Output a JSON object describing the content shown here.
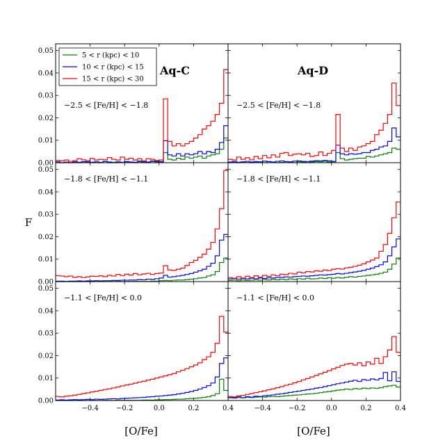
{
  "chart_data": {
    "type": "step-histogram",
    "ylabel": "F",
    "xlabel": "[O/Fe]",
    "xlim": [
      -0.6,
      0.4
    ],
    "ylim": [
      0.0,
      0.053
    ],
    "x_ticks": [
      -0.4,
      -0.2,
      0.0,
      0.2,
      0.4
    ],
    "x_tick_labels": [
      "−0.4",
      "−0.2",
      "0.0",
      "0.2",
      "0.4"
    ],
    "y_ticks": [
      0.0,
      0.01,
      0.02,
      0.03,
      0.04,
      0.05
    ],
    "y_tick_labels": [
      "0.00",
      "0.01",
      "0.02",
      "0.03",
      "0.04",
      "0.05"
    ],
    "bin_start": -0.6,
    "bin_width": 0.025,
    "legend": [
      {
        "label": "5 < r (kpc) < 10",
        "color": "#008000"
      },
      {
        "label": "10 < r (kpc) < 15",
        "color": "#0000ff"
      },
      {
        "label": "15 < r (kpc) < 30",
        "color": "#ff0000"
      }
    ],
    "models": [
      "Aq-C",
      "Aq-D"
    ],
    "panels": [
      {
        "model": "Aq-C",
        "row": 0,
        "col": 0,
        "label": "−2.5 < [Fe/H] < −1.8",
        "series": [
          {
            "name": "5 < r (kpc) < 10",
            "color": "#008000",
            "values": [
              0,
              0,
              0.0002,
              0,
              0.0003,
              0,
              0.0001,
              0.0004,
              0,
              0,
              0.0002,
              0.0005,
              0,
              0.0002,
              0,
              0.0001,
              0.0003,
              0.0002,
              0,
              0.0004,
              0.0002,
              0,
              0.0005,
              0.0003,
              0.0003,
              0.0045,
              0.0015,
              0.0012,
              0.002,
              0.0015,
              0.0025,
              0.002,
              0.0025,
              0.003,
              0.002,
              0.003,
              0.0035,
              0.004,
              0.006,
              0.011
            ]
          },
          {
            "name": "10 < r (kpc) < 15",
            "color": "#0000ff",
            "values": [
              0.0004,
              0,
              0.0002,
              0,
              0.0004,
              0.0002,
              0.0005,
              0.0003,
              0.0002,
              0.0004,
              0,
              0.0006,
              0.0003,
              0,
              0.0004,
              0.0002,
              0.0005,
              0.0003,
              0.0002,
              0.0007,
              0.0004,
              0.0003,
              0.0008,
              0.0006,
              0.0005,
              0.0098,
              0.0035,
              0.003,
              0.004,
              0.003,
              0.004,
              0.0035,
              0.004,
              0.005,
              0.004,
              0.005,
              0.0045,
              0.006,
              0.009,
              0.0165
            ]
          },
          {
            "name": "15 < r (kpc) < 30",
            "color": "#ff0000",
            "values": [
              0.001,
              0.0008,
              0.0012,
              0.0006,
              0.0009,
              0.0018,
              0.0013,
              0.0009,
              0.0019,
              0.0012,
              0.0015,
              0.0013,
              0.0023,
              0.0015,
              0.0012,
              0.0025,
              0.0015,
              0.002,
              0.0012,
              0.0018,
              0.0008,
              0.0018,
              0.0015,
              0.001,
              0.0012,
              0.0285,
              0.0095,
              0.0075,
              0.0085,
              0.0075,
              0.0085,
              0.0095,
              0.011,
              0.0125,
              0.015,
              0.0165,
              0.0185,
              0.0215,
              0.0265,
              0.0415
            ]
          }
        ]
      },
      {
        "model": "Aq-D",
        "row": 0,
        "col": 1,
        "label": "−2.5 < [Fe/H] < −1.8",
        "series": [
          {
            "name": "5 < r (kpc) < 10",
            "color": "#008000",
            "values": [
              0,
              0.0002,
              0,
              0.0003,
              0.0001,
              0,
              0.0003,
              0.0002,
              0,
              0.0004,
              0.0002,
              0,
              0.0002,
              0.0004,
              0.0002,
              0,
              0.0004,
              0.0003,
              0,
              0.0003,
              0.0005,
              0.0004,
              0.0006,
              0.0003,
              0.0004,
              0.0045,
              0.0018,
              0.0012,
              0.0015,
              0.0018,
              0.002,
              0.002,
              0.0028,
              0.0025,
              0.003,
              0.0035,
              0.004,
              0.0045,
              0.0065,
              0.006
            ]
          },
          {
            "name": "10 < r (kpc) < 15",
            "color": "#0000ff",
            "values": [
              0.0003,
              0.0005,
              0.0002,
              0.0004,
              0.0006,
              0.0003,
              0.0005,
              0.0004,
              0.0007,
              0.0005,
              0.0003,
              0.0006,
              0.0008,
              0.0005,
              0.0004,
              0.0007,
              0.0008,
              0.0006,
              0.0005,
              0.0007,
              0.0009,
              0.0008,
              0.001,
              0.0008,
              0.0006,
              0.0078,
              0.004,
              0.0035,
              0.004,
              0.0038,
              0.004,
              0.0045,
              0.0045,
              0.0055,
              0.006,
              0.007,
              0.0075,
              0.0095,
              0.0155,
              0.0115
            ]
          },
          {
            "name": "15 < r (kpc) < 30",
            "color": "#ff0000",
            "values": [
              0.0015,
              0.0012,
              0.0025,
              0.0015,
              0.0022,
              0.0013,
              0.0028,
              0.0018,
              0.0032,
              0.0022,
              0.0035,
              0.0025,
              0.0042,
              0.0045,
              0.0032,
              0.0038,
              0.004,
              0.0035,
              0.0042,
              0.0028,
              0.0032,
              0.0048,
              0.0032,
              0.0042,
              0.0055,
              0.0215,
              0.0065,
              0.005,
              0.0065,
              0.0055,
              0.007,
              0.0075,
              0.0085,
              0.0095,
              0.0125,
              0.0145,
              0.0175,
              0.0215,
              0.0355,
              0.0255
            ]
          }
        ]
      },
      {
        "model": "Aq-C",
        "row": 1,
        "col": 0,
        "label": "−1.8 < [Fe/H] < −1.1",
        "series": [
          {
            "name": "5 < r (kpc) < 10",
            "color": "#008000",
            "values": [
              0,
              0,
              0,
              0,
              0,
              0,
              0,
              0,
              0,
              0,
              0.0001,
              0,
              0,
              0,
              0.0001,
              0,
              0,
              0.0001,
              0.0001,
              0.0001,
              0.0001,
              0.0001,
              0.0002,
              0.0002,
              0.0004,
              0.0005,
              0.0004,
              0.0006,
              0.0007,
              0.0007,
              0.0009,
              0.0011,
              0.0013,
              0.0016,
              0.0018,
              0.0025,
              0.003,
              0.0045,
              0.0085,
              0.0105
            ]
          },
          {
            "name": "10 < r (kpc) < 15",
            "color": "#0000ff",
            "values": [
              0.0002,
              0.0002,
              0.0001,
              0.0002,
              0.0002,
              0.0003,
              0.0002,
              0.0003,
              0.0003,
              0.0004,
              0.0003,
              0.0004,
              0.0004,
              0.0005,
              0.0005,
              0.0006,
              0.0006,
              0.0007,
              0.0007,
              0.0009,
              0.0008,
              0.0011,
              0.001,
              0.0013,
              0.0016,
              0.0028,
              0.002,
              0.0022,
              0.0025,
              0.0028,
              0.0032,
              0.0036,
              0.0042,
              0.0048,
              0.0055,
              0.0068,
              0.0082,
              0.0115,
              0.0185,
              0.021
            ]
          },
          {
            "name": "15 < r (kpc) < 30",
            "color": "#ff0000",
            "values": [
              0.0027,
              0.0025,
              0.0022,
              0.0025,
              0.0019,
              0.0022,
              0.0018,
              0.0021,
              0.0024,
              0.0023,
              0.0026,
              0.0022,
              0.0028,
              0.0025,
              0.0032,
              0.0027,
              0.0033,
              0.0029,
              0.0036,
              0.003,
              0.0034,
              0.0037,
              0.0032,
              0.0036,
              0.0038,
              0.0071,
              0.0052,
              0.005,
              0.0055,
              0.006,
              0.0072,
              0.0085,
              0.0095,
              0.0108,
              0.0122,
              0.0145,
              0.0175,
              0.0235,
              0.0325,
              0.0495
            ]
          }
        ]
      },
      {
        "model": "Aq-D",
        "row": 1,
        "col": 1,
        "label": "−1.8 < [Fe/H] < −1.1",
        "series": [
          {
            "name": "5 < r (kpc) < 10",
            "color": "#008000",
            "values": [
              0.0005,
              0.0006,
              0.0004,
              0.0007,
              0.0005,
              0.0006,
              0.0008,
              0.0006,
              0.0009,
              0.0007,
              0.001,
              0.0008,
              0.0011,
              0.0009,
              0.0012,
              0.001,
              0.0013,
              0.0011,
              0.0015,
              0.0012,
              0.0013,
              0.0016,
              0.0014,
              0.0017,
              0.0015,
              0.0018,
              0.0016,
              0.0019,
              0.0022,
              0.002,
              0.0023,
              0.0025,
              0.0028,
              0.003,
              0.0033,
              0.0037,
              0.0042,
              0.0055,
              0.0078,
              0.0105
            ]
          },
          {
            "name": "10 < r (kpc) < 15",
            "color": "#0000ff",
            "values": [
              0.0012,
              0.0013,
              0.0011,
              0.0014,
              0.0012,
              0.0015,
              0.0013,
              0.0016,
              0.0014,
              0.0017,
              0.0016,
              0.0018,
              0.0019,
              0.0021,
              0.002,
              0.0022,
              0.0023,
              0.0025,
              0.0024,
              0.0026,
              0.0028,
              0.003,
              0.0029,
              0.0031,
              0.0033,
              0.0036,
              0.0034,
              0.0037,
              0.004,
              0.0043,
              0.0046,
              0.005,
              0.0055,
              0.006,
              0.0067,
              0.0075,
              0.0088,
              0.0115,
              0.0155,
              0.019
            ]
          },
          {
            "name": "15 < r (kpc) < 30",
            "color": "#ff0000",
            "values": [
              0.0018,
              0.0015,
              0.0022,
              0.0016,
              0.0024,
              0.0018,
              0.0026,
              0.002,
              0.0028,
              0.0023,
              0.003,
              0.0026,
              0.0033,
              0.0031,
              0.0037,
              0.0034,
              0.0042,
              0.0039,
              0.0045,
              0.0043,
              0.0048,
              0.0046,
              0.0052,
              0.0049,
              0.0055,
              0.0058,
              0.0056,
              0.0061,
              0.0064,
              0.0068,
              0.0073,
              0.0079,
              0.0088,
              0.0096,
              0.0105,
              0.0135,
              0.0165,
              0.0215,
              0.0285,
              0.0355
            ]
          }
        ]
      },
      {
        "model": "Aq-C",
        "row": 2,
        "col": 0,
        "label": "−1.1 < [Fe/H] < 0.0",
        "series": [
          {
            "name": "5 < r (kpc) < 10",
            "color": "#008000",
            "values": [
              0,
              0,
              0,
              0,
              0,
              0,
              0,
              0,
              0.0001,
              0,
              0,
              0.0001,
              0,
              0,
              0.0001,
              0.0001,
              0.0001,
              0.0001,
              0.0001,
              0.0001,
              0.0002,
              0.0002,
              0.0002,
              0.0003,
              0.0003,
              0.0004,
              0.0004,
              0.0005,
              0.0006,
              0.0006,
              0.0008,
              0.0009,
              0.001,
              0.0012,
              0.0014,
              0.0017,
              0.0022,
              0.003,
              0.0095,
              0.0045
            ]
          },
          {
            "name": "10 < r (kpc) < 15",
            "color": "#0000ff",
            "values": [
              0.0002,
              0.0003,
              0.0002,
              0.0003,
              0.0004,
              0.0003,
              0.0004,
              0.0005,
              0.0004,
              0.0006,
              0.0005,
              0.0006,
              0.0007,
              0.0008,
              0.0007,
              0.0009,
              0.001,
              0.0011,
              0.0012,
              0.0013,
              0.0014,
              0.0016,
              0.0017,
              0.0019,
              0.002,
              0.0022,
              0.0024,
              0.0026,
              0.0029,
              0.0032,
              0.0036,
              0.004,
              0.0045,
              0.0051,
              0.0058,
              0.0066,
              0.0078,
              0.0105,
              0.0165,
              0.019
            ]
          },
          {
            "name": "15 < r (kpc) < 30",
            "color": "#ff0000",
            "values": [
              0.0018,
              0.0016,
              0.0019,
              0.0021,
              0.0024,
              0.0027,
              0.0031,
              0.0034,
              0.0038,
              0.0041,
              0.0045,
              0.0049,
              0.0052,
              0.0056,
              0.006,
              0.0065,
              0.0069,
              0.0073,
              0.0077,
              0.0082,
              0.0086,
              0.0091,
              0.0095,
              0.01,
              0.0105,
              0.011,
              0.0115,
              0.012,
              0.0128,
              0.0135,
              0.0142,
              0.015,
              0.0158,
              0.0168,
              0.0182,
              0.0195,
              0.0215,
              0.0255,
              0.0375,
              0.0305
            ]
          }
        ]
      },
      {
        "model": "Aq-D",
        "row": 2,
        "col": 1,
        "label": "−1.1 < [Fe/H] < 0.0",
        "series": [
          {
            "name": "5 < r (kpc) < 10",
            "color": "#008000",
            "values": [
              0.0012,
              0.0011,
              0.0013,
              0.0012,
              0.0014,
              0.0013,
              0.0015,
              0.0016,
              0.0015,
              0.0017,
              0.0018,
              0.0017,
              0.0019,
              0.0021,
              0.0022,
              0.0024,
              0.0025,
              0.0027,
              0.0029,
              0.003,
              0.0032,
              0.0035,
              0.0038,
              0.004,
              0.0043,
              0.0046,
              0.0048,
              0.0051,
              0.0049,
              0.0053,
              0.0051,
              0.0055,
              0.0053,
              0.0056,
              0.0054,
              0.0057,
              0.0062,
              0.0065,
              0.0068,
              0.006
            ]
          },
          {
            "name": "10 < r (kpc) < 15",
            "color": "#0000ff",
            "values": [
              0.0014,
              0.0012,
              0.0016,
              0.0013,
              0.0017,
              0.0015,
              0.0019,
              0.0018,
              0.0021,
              0.0023,
              0.0025,
              0.0028,
              0.003,
              0.0033,
              0.0036,
              0.0039,
              0.0042,
              0.0045,
              0.0048,
              0.0051,
              0.0055,
              0.0058,
              0.0062,
              0.0066,
              0.007,
              0.0075,
              0.0078,
              0.0082,
              0.0086,
              0.009,
              0.0085,
              0.0093,
              0.009,
              0.0096,
              0.0092,
              0.0098,
              0.0125,
              0.0088,
              0.0128,
              0.0085
            ]
          },
          {
            "name": "15 < r (kpc) < 30",
            "color": "#ff0000",
            "values": [
              0.0018,
              0.0016,
              0.0021,
              0.0023,
              0.0027,
              0.0031,
              0.0035,
              0.0039,
              0.0043,
              0.0048,
              0.0052,
              0.0057,
              0.0062,
              0.0068,
              0.0073,
              0.0079,
              0.0085,
              0.0092,
              0.0098,
              0.0105,
              0.0112,
              0.0119,
              0.0126,
              0.0133,
              0.0141,
              0.0148,
              0.0156,
              0.0162,
              0.0165,
              0.0158,
              0.0168,
              0.0155,
              0.0172,
              0.0162,
              0.0188,
              0.0165,
              0.0195,
              0.0225,
              0.0285,
              0.0215
            ]
          }
        ]
      }
    ]
  }
}
